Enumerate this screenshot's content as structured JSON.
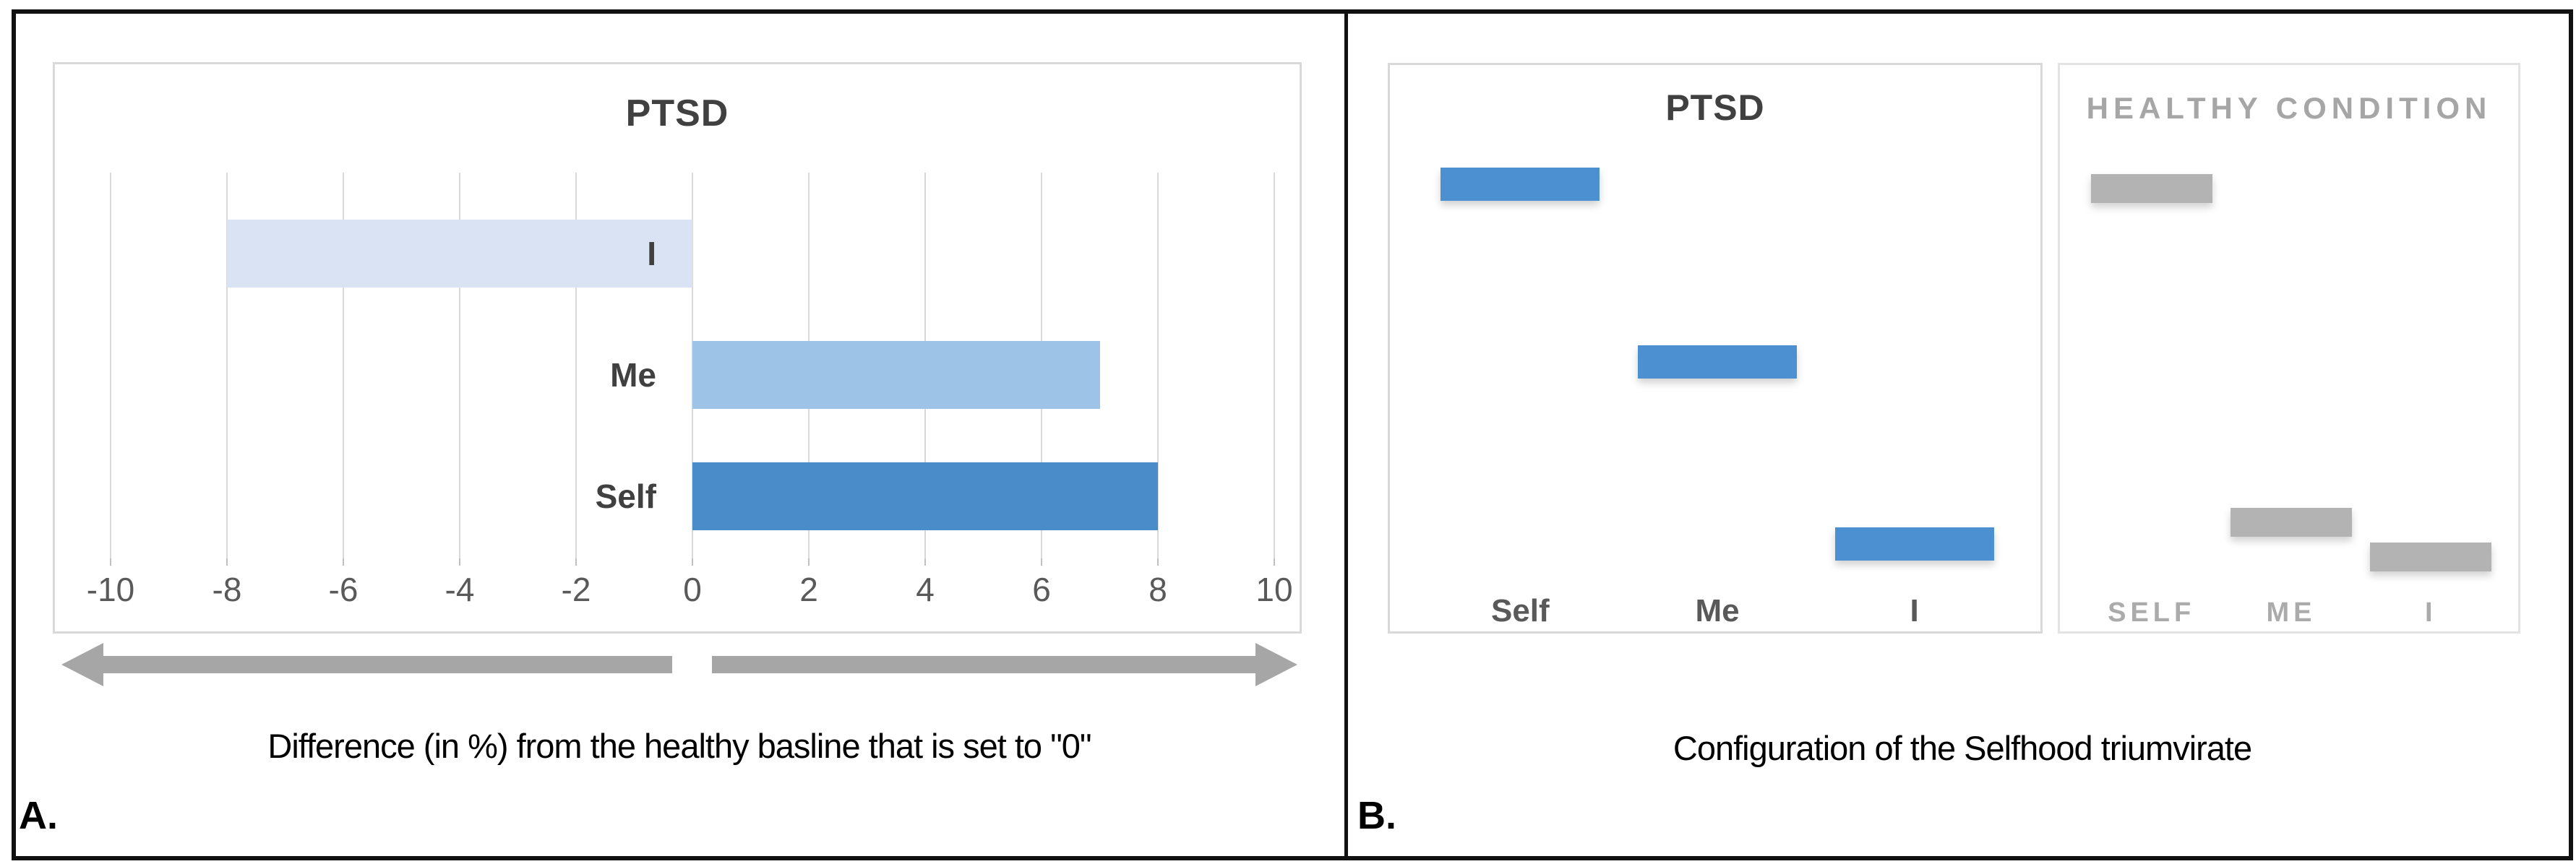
{
  "figure": {
    "panel_a_label": "A.",
    "panel_b_label": "B."
  },
  "colors": {
    "grid": "#d9d9d9",
    "arrow": "#a6a6a6",
    "frame": "#111111",
    "ptsd_title": "#404040",
    "healthy_title": "#a6a6a6"
  },
  "arrow": {
    "type": "double-headed",
    "color": "#a6a6a6",
    "gap_at_zero": true
  },
  "chart_data": [
    {
      "id": "panel-a",
      "type": "bar",
      "orientation": "horizontal",
      "title": "PTSD",
      "categories": [
        "I",
        "Me",
        "Self"
      ],
      "values": [
        -8,
        7,
        8
      ],
      "bar_colors": [
        "#dae3f3",
        "#9dc3e6",
        "#4a8bc9"
      ],
      "xlim": [
        -10,
        10
      ],
      "xticks": [
        -10,
        -8,
        -6,
        -4,
        -2,
        0,
        2,
        4,
        6,
        8,
        10
      ],
      "grid": true,
      "legend": "none",
      "caption": "Difference (in %) from the healthy basline that is set to \"0\""
    },
    {
      "id": "panel-b",
      "type": "bar",
      "subtype": "floating-level-bars",
      "caption": "Configuration of the Selfhood triumvirate",
      "level_units": "relative vertical position, 0=bottom 100=top (estimated)",
      "groups": [
        {
          "title": "PTSD",
          "title_color": "#404040",
          "bar_color": "#4d90d2",
          "categories": [
            "Self",
            "Me",
            "I"
          ],
          "levels": [
            93,
            52,
            10
          ]
        },
        {
          "title": "HEALTHY CONDITION",
          "title_color": "#a6a6a6",
          "bar_color": "#b3b3b3",
          "categories": [
            "SELF",
            "ME",
            "I"
          ],
          "levels": [
            92,
            15,
            7
          ]
        }
      ]
    }
  ]
}
